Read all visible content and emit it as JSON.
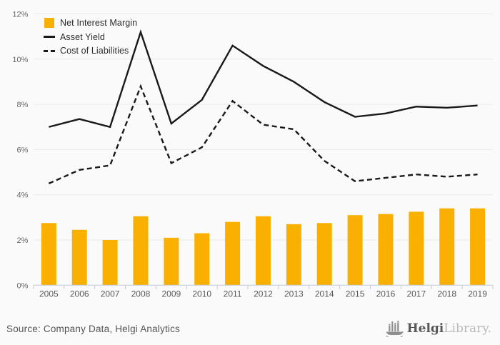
{
  "legend": {
    "items": [
      {
        "label": "Net Interest Margin",
        "swatch": "orange-square",
        "color": "#F9B000"
      },
      {
        "label": "Asset Yield",
        "swatch": "solid-line",
        "color": "#1A1A1A"
      },
      {
        "label": "Cost of Liabilities",
        "swatch": "dashed-line",
        "color": "#1A1A1A"
      }
    ]
  },
  "footer": {
    "source_text": "Source: Company Data, Helgi Analytics",
    "logo": {
      "brand_bold": "Helgi",
      "brand_light": "Library."
    }
  },
  "colors": {
    "background": "#FAFAFA",
    "gridline": "#E9E9E9",
    "axis": "#C2CAD8",
    "bar": "#F9B000",
    "line": "#1A1A1A",
    "year_label": "#58595B",
    "y_label": "#666666",
    "source_text": "#555555",
    "logo_dark": "#58585A",
    "logo_light": "#B9B9BB",
    "logo_icon": "#8E8E90"
  },
  "chart_data": {
    "type": "combo-bar-line",
    "categories": [
      "2005",
      "2006",
      "2007",
      "2008",
      "2009",
      "2010",
      "2011",
      "2012",
      "2013",
      "2014",
      "2015",
      "2016",
      "2017",
      "2018",
      "2019"
    ],
    "series": [
      {
        "name": "Net Interest Margin",
        "type": "bar",
        "style": "solid",
        "color": "#F9B000",
        "values": [
          2.75,
          2.45,
          2.0,
          3.05,
          2.1,
          2.3,
          2.8,
          3.05,
          2.7,
          2.75,
          3.1,
          3.15,
          3.25,
          3.4,
          3.4
        ]
      },
      {
        "name": "Asset Yield",
        "type": "line",
        "style": "solid",
        "color": "#1A1A1A",
        "values": [
          7.0,
          7.35,
          7.0,
          11.2,
          7.15,
          8.2,
          10.6,
          9.7,
          9.0,
          8.1,
          7.45,
          7.6,
          7.9,
          7.85,
          7.95
        ]
      },
      {
        "name": "Cost of Liabilities",
        "type": "line",
        "style": "dashed",
        "color": "#1A1A1A",
        "values": [
          4.5,
          5.1,
          5.3,
          8.8,
          5.4,
          6.1,
          8.15,
          7.1,
          6.9,
          5.5,
          4.6,
          4.75,
          4.9,
          4.8,
          4.9
        ]
      }
    ],
    "ylim": [
      0,
      12
    ],
    "y_ticks": [
      0,
      2,
      4,
      6,
      8,
      10,
      12
    ],
    "y_tick_labels": [
      "0%",
      "2%",
      "4%",
      "6%",
      "8%",
      "10%",
      "12%"
    ],
    "grid": true,
    "legend_position": "top-left",
    "title": "",
    "xlabel": "",
    "ylabel": ""
  }
}
